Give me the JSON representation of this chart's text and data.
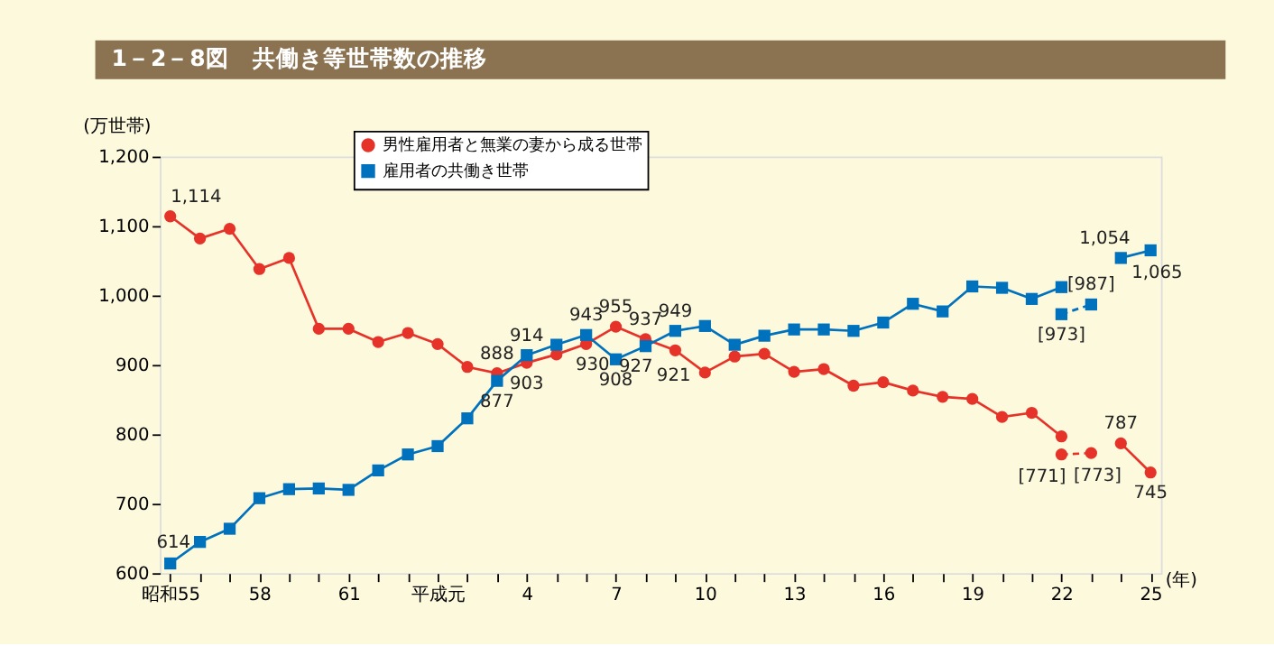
{
  "chart_data": {
    "type": "line",
    "title": "1－2－8図　共働き等世帯数の推移",
    "xlabel": "(年)",
    "ylabel": "(万世帯)",
    "categories": [
      "昭和55",
      null,
      null,
      "58",
      null,
      null,
      "61",
      null,
      null,
      "平成元",
      null,
      null,
      "4",
      null,
      null,
      "7",
      null,
      null,
      "10",
      null,
      null,
      "13",
      null,
      null,
      "16",
      null,
      null,
      "19",
      null,
      null,
      "22",
      null,
      null,
      "25"
    ],
    "ylim": [
      600,
      1200
    ],
    "yticks": [
      600,
      700,
      800,
      900,
      {
        "value": 1000,
        "label": "1,000"
      },
      {
        "value": 1100,
        "label": "1,100"
      },
      {
        "value": 1200,
        "label": "1,200"
      }
    ],
    "grid": false,
    "legend": "top left",
    "series": [
      {
        "name": "男性雇用者と無業の妻から成る世帯",
        "color": "#e6332a",
        "marker": "circle",
        "line_style": "solid",
        "values": [
          1114,
          1082,
          1096,
          1038,
          1054,
          952,
          952,
          933,
          946,
          930,
          897,
          888,
          903,
          915,
          930,
          955,
          937,
          921,
          889,
          912,
          916,
          890,
          894,
          870,
          875,
          863,
          854,
          851,
          825,
          831,
          797,
          null,
          787,
          745
        ],
        "value_labels": [
          "1,114",
          null,
          null,
          null,
          null,
          null,
          null,
          null,
          null,
          null,
          null,
          "888",
          "903",
          null,
          "930",
          "955",
          "937",
          "921",
          null,
          null,
          null,
          null,
          null,
          null,
          null,
          null,
          null,
          null,
          null,
          null,
          null,
          null,
          "787",
          "745"
        ]
      },
      {
        "name": "雇用者の共働き世帯",
        "color": "#0071bc",
        "marker": "square",
        "line_style": "solid",
        "values": [
          614,
          645,
          664,
          708,
          721,
          722,
          720,
          748,
          771,
          783,
          823,
          877,
          914,
          929,
          943,
          908,
          927,
          949,
          956,
          929,
          942,
          951,
          951,
          949,
          961,
          988,
          977,
          1013,
          1011,
          995,
          1012,
          null,
          1054,
          1065
        ],
        "value_labels": [
          "614",
          null,
          null,
          null,
          null,
          null,
          null,
          null,
          null,
          null,
          null,
          "877",
          "914",
          null,
          "943",
          "908",
          "927",
          "949",
          null,
          null,
          null,
          null,
          null,
          null,
          null,
          null,
          null,
          null,
          null,
          null,
          null,
          null,
          "1,054",
          "1,065"
        ]
      },
      {
        "color": "#e6332a",
        "marker": "circle",
        "line_style": "dashed",
        "values": [
          null,
          null,
          null,
          null,
          null,
          null,
          null,
          null,
          null,
          null,
          null,
          null,
          null,
          null,
          null,
          null,
          null,
          null,
          null,
          null,
          null,
          null,
          null,
          null,
          null,
          null,
          null,
          null,
          null,
          null,
          771,
          773,
          null,
          null
        ],
        "value_labels": [
          null,
          null,
          null,
          null,
          null,
          null,
          null,
          null,
          null,
          null,
          null,
          null,
          null,
          null,
          null,
          null,
          null,
          null,
          null,
          null,
          null,
          null,
          null,
          null,
          null,
          null,
          null,
          null,
          null,
          null,
          "[771]",
          "[773]",
          null,
          null
        ]
      },
      {
        "color": "#0071bc",
        "marker": "square",
        "line_style": "dashed",
        "values": [
          null,
          null,
          null,
          null,
          null,
          null,
          null,
          null,
          null,
          null,
          null,
          null,
          null,
          null,
          null,
          null,
          null,
          null,
          null,
          null,
          null,
          null,
          null,
          null,
          null,
          null,
          null,
          null,
          null,
          null,
          973,
          987,
          null,
          null
        ],
        "value_labels": [
          null,
          null,
          null,
          null,
          null,
          null,
          null,
          null,
          null,
          null,
          null,
          null,
          null,
          null,
          null,
          null,
          null,
          null,
          null,
          null,
          null,
          null,
          null,
          null,
          null,
          null,
          null,
          null,
          null,
          null,
          "[973]",
          "[987]",
          null,
          null
        ]
      }
    ]
  }
}
